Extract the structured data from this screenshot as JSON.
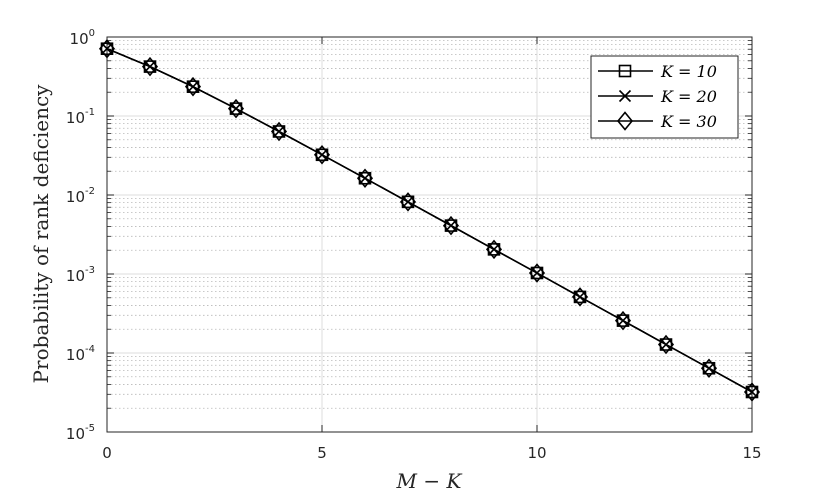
{
  "chart_data": {
    "type": "line",
    "xlabel": "M − K",
    "ylabel": "Probability of rank deficiency",
    "xlim": [
      0,
      15
    ],
    "ylim": [
      1e-05,
      1
    ],
    "yscale": "log",
    "grid": true,
    "minor_grid": true,
    "legend_position": "top-right",
    "x_ticks": [
      "0",
      "5",
      "10",
      "15"
    ],
    "y_ticks": [
      {
        "base": "10",
        "exp": "0",
        "value": 1
      },
      {
        "base": "10",
        "exp": "-1",
        "value": 0.1
      },
      {
        "base": "10",
        "exp": "-2",
        "value": 0.01
      },
      {
        "base": "10",
        "exp": "-3",
        "value": 0.001
      },
      {
        "base": "10",
        "exp": "-4",
        "value": 0.0001
      },
      {
        "base": "10",
        "exp": "-5",
        "value": 1e-05
      }
    ],
    "x": [
      0,
      1,
      2,
      3,
      4,
      5,
      6,
      7,
      8,
      9,
      10,
      11,
      12,
      13,
      14,
      15
    ],
    "series": [
      {
        "name": "K = 10",
        "marker": "square",
        "color": "#000000",
        "values": [
          0.711,
          0.422,
          0.235,
          0.124,
          0.0637,
          0.0323,
          0.0163,
          0.00819,
          0.0041,
          0.00205,
          0.00103,
          0.000513,
          0.000257,
          0.000128,
          6.41e-05,
          3.21e-05
        ]
      },
      {
        "name": "K = 20",
        "marker": "x",
        "color": "#000000",
        "values": [
          0.711,
          0.422,
          0.235,
          0.124,
          0.0637,
          0.0323,
          0.0163,
          0.00819,
          0.0041,
          0.00205,
          0.00103,
          0.000513,
          0.000257,
          0.000128,
          6.41e-05,
          3.21e-05
        ]
      },
      {
        "name": "K = 30",
        "marker": "diamond",
        "color": "#000000",
        "values": [
          0.711,
          0.422,
          0.235,
          0.124,
          0.0637,
          0.0323,
          0.0163,
          0.00819,
          0.0041,
          0.00205,
          0.00103,
          0.000513,
          0.000257,
          0.000128,
          6.41e-05,
          3.21e-05
        ]
      }
    ]
  }
}
